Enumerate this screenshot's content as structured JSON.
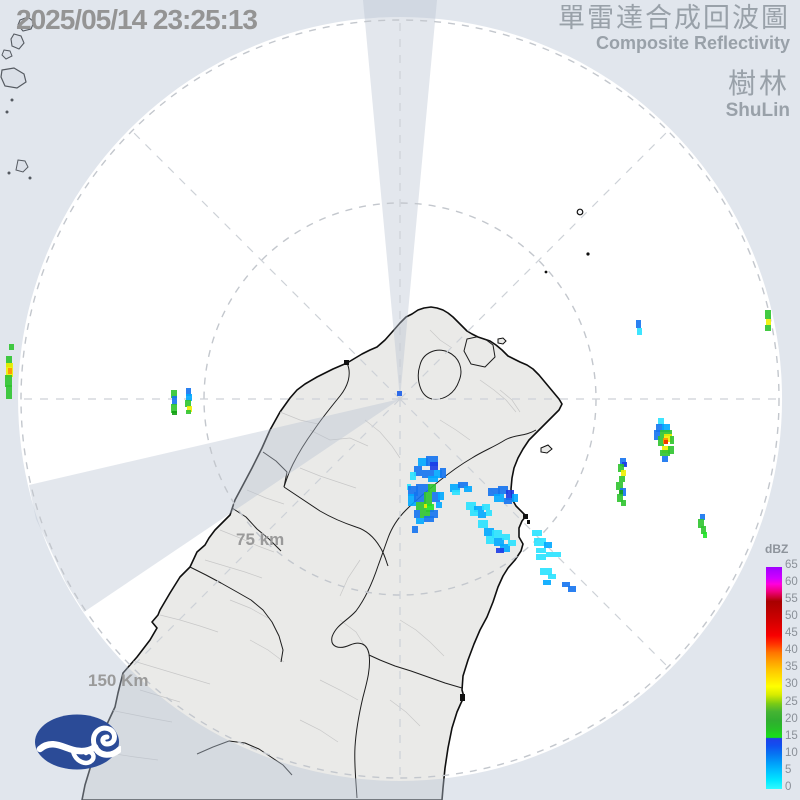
{
  "header": {
    "timestamp": "2025/05/14 23:25:13",
    "title_zh": "單雷達合成回波圖",
    "title_en": "Composite Reflectivity",
    "station_zh": "樹林",
    "station_en": "ShuLin"
  },
  "rings": {
    "inner": "75 km",
    "outer": "150 Km"
  },
  "colorbar": {
    "unit": "dBZ",
    "ticks": [
      "65",
      "60",
      "55",
      "50",
      "45",
      "40",
      "35",
      "30",
      "25",
      "20",
      "15",
      "10",
      "5",
      "0"
    ],
    "gradient": [
      {
        "p": 0,
        "c": "#A000FF"
      },
      {
        "p": 5,
        "c": "#D000FF"
      },
      {
        "p": 7.7,
        "c": "#FF00DC"
      },
      {
        "p": 11,
        "c": "#F00080"
      },
      {
        "p": 14,
        "c": "#C80028"
      },
      {
        "p": 15.4,
        "c": "#A80000"
      },
      {
        "p": 19,
        "c": "#B80000"
      },
      {
        "p": 23.1,
        "c": "#CC0000"
      },
      {
        "p": 27,
        "c": "#E20000"
      },
      {
        "p": 30.8,
        "c": "#F80000"
      },
      {
        "p": 34.5,
        "c": "#FF3000"
      },
      {
        "p": 38.5,
        "c": "#FF7400"
      },
      {
        "p": 42.5,
        "c": "#FFA000"
      },
      {
        "p": 46.2,
        "c": "#FFC400"
      },
      {
        "p": 50,
        "c": "#FFE200"
      },
      {
        "p": 53.8,
        "c": "#FFFF00"
      },
      {
        "p": 57.5,
        "c": "#D8EC00"
      },
      {
        "p": 61.5,
        "c": "#7CCC14"
      },
      {
        "p": 65,
        "c": "#46B432"
      },
      {
        "p": 69.2,
        "c": "#30AE30"
      },
      {
        "p": 73,
        "c": "#26C026"
      },
      {
        "p": 76.8,
        "c": "#16E216"
      },
      {
        "p": 77.2,
        "c": "#2040E8"
      },
      {
        "p": 80.5,
        "c": "#1050F0"
      },
      {
        "p": 84.6,
        "c": "#0678F2"
      },
      {
        "p": 88.5,
        "c": "#00A0FA"
      },
      {
        "p": 92.3,
        "c": "#00C4FF"
      },
      {
        "p": 96,
        "c": "#00E6FF"
      },
      {
        "p": 100,
        "c": "#30FAFF"
      }
    ]
  },
  "echo_palette": {
    "cy": "#29E2FF",
    "lb": "#00A8FF",
    "bl": "#1473F0",
    "db": "#1C3BE6",
    "gr": "#2FC42F",
    "bg": "#1FE426",
    "dg": "#13A013",
    "ye": "#F0F000",
    "or": "#FF9000",
    "rd": "#F03000",
    "yo": "#FFC800"
  },
  "radar_marker_color": "#2E6BE8",
  "echoes": [
    [
      418,
      458,
      10,
      8,
      "lb"
    ],
    [
      426,
      456,
      12,
      10,
      "bl"
    ],
    [
      430,
      462,
      8,
      8,
      "db"
    ],
    [
      414,
      466,
      8,
      10,
      "bl"
    ],
    [
      422,
      470,
      12,
      8,
      "bl"
    ],
    [
      434,
      470,
      8,
      8,
      "lb"
    ],
    [
      440,
      468,
      6,
      10,
      "bl"
    ],
    [
      428,
      476,
      10,
      6,
      "lb"
    ],
    [
      410,
      472,
      6,
      8,
      "cy"
    ],
    [
      407,
      484,
      4,
      6,
      "cy"
    ],
    [
      408,
      486,
      10,
      10,
      "bl"
    ],
    [
      416,
      484,
      14,
      8,
      "bl"
    ],
    [
      428,
      484,
      8,
      8,
      "gr"
    ],
    [
      408,
      494,
      8,
      12,
      "lb"
    ],
    [
      414,
      492,
      12,
      10,
      "bl"
    ],
    [
      424,
      492,
      8,
      14,
      "gr"
    ],
    [
      432,
      492,
      8,
      10,
      "bl"
    ],
    [
      416,
      502,
      10,
      8,
      "gr"
    ],
    [
      426,
      504,
      8,
      8,
      "bg"
    ],
    [
      420,
      510,
      10,
      8,
      "gr"
    ],
    [
      430,
      510,
      8,
      8,
      "bl"
    ],
    [
      414,
      510,
      6,
      8,
      "bl"
    ],
    [
      424,
      516,
      10,
      6,
      "bl"
    ],
    [
      416,
      518,
      8,
      6,
      "lb"
    ],
    [
      424,
      504,
      3,
      4,
      "ye"
    ],
    [
      412,
      526,
      6,
      7,
      "bl"
    ],
    [
      438,
      492,
      6,
      8,
      "lb"
    ],
    [
      436,
      502,
      6,
      6,
      "lb"
    ],
    [
      450,
      484,
      10,
      8,
      "lb"
    ],
    [
      458,
      482,
      10,
      6,
      "bl"
    ],
    [
      464,
      486,
      8,
      6,
      "lb"
    ],
    [
      452,
      490,
      8,
      5,
      "cy"
    ],
    [
      488,
      488,
      12,
      8,
      "bl"
    ],
    [
      498,
      486,
      10,
      8,
      "bl"
    ],
    [
      506,
      490,
      8,
      10,
      "db"
    ],
    [
      494,
      494,
      10,
      8,
      "lb"
    ],
    [
      504,
      498,
      8,
      6,
      "bl"
    ],
    [
      512,
      494,
      6,
      8,
      "lb"
    ],
    [
      466,
      502,
      10,
      8,
      "cy"
    ],
    [
      474,
      506,
      10,
      6,
      "lb"
    ],
    [
      482,
      504,
      8,
      6,
      "cy"
    ],
    [
      470,
      510,
      8,
      6,
      "cy"
    ],
    [
      478,
      512,
      8,
      6,
      "lb"
    ],
    [
      486,
      510,
      6,
      6,
      "cy"
    ],
    [
      478,
      520,
      10,
      8,
      "cy"
    ],
    [
      484,
      528,
      10,
      8,
      "lb"
    ],
    [
      492,
      530,
      10,
      8,
      "cy"
    ],
    [
      486,
      536,
      8,
      8,
      "cy"
    ],
    [
      494,
      538,
      10,
      8,
      "lb"
    ],
    [
      502,
      534,
      8,
      6,
      "cy"
    ],
    [
      500,
      544,
      10,
      8,
      "lb"
    ],
    [
      508,
      540,
      8,
      6,
      "cy"
    ],
    [
      496,
      548,
      8,
      5,
      "db"
    ],
    [
      532,
      530,
      10,
      6,
      "cy"
    ],
    [
      534,
      538,
      12,
      8,
      "cy"
    ],
    [
      544,
      542,
      8,
      6,
      "lb"
    ],
    [
      536,
      548,
      10,
      5,
      "cy"
    ],
    [
      536,
      554,
      10,
      6,
      "cy"
    ],
    [
      546,
      552,
      8,
      5,
      "cy"
    ],
    [
      554,
      552,
      7,
      5,
      "cy"
    ],
    [
      540,
      568,
      12,
      7,
      "cy"
    ],
    [
      548,
      574,
      8,
      5,
      "cy"
    ],
    [
      543,
      580,
      8,
      5,
      "lb"
    ],
    [
      562,
      582,
      8,
      5,
      "bl"
    ],
    [
      568,
      586,
      8,
      6,
      "bl"
    ],
    [
      636,
      320,
      5,
      8,
      "bl"
    ],
    [
      637,
      328,
      5,
      7,
      "cy"
    ],
    [
      765,
      310,
      6,
      9,
      "gr"
    ],
    [
      766,
      319,
      5,
      6,
      "ye"
    ],
    [
      765,
      325,
      6,
      6,
      "gr"
    ],
    [
      658,
      418,
      6,
      7,
      "cy"
    ],
    [
      656,
      424,
      8,
      8,
      "bl"
    ],
    [
      662,
      424,
      8,
      8,
      "lb"
    ],
    [
      654,
      430,
      6,
      10,
      "bl"
    ],
    [
      660,
      430,
      12,
      6,
      "gr"
    ],
    [
      658,
      436,
      6,
      10,
      "gr"
    ],
    [
      664,
      434,
      8,
      8,
      "ye"
    ],
    [
      670,
      436,
      4,
      8,
      "gr"
    ],
    [
      663,
      438,
      5,
      6,
      "or"
    ],
    [
      664,
      440,
      4,
      4,
      "rd"
    ],
    [
      662,
      446,
      8,
      7,
      "ye"
    ],
    [
      660,
      450,
      10,
      6,
      "gr"
    ],
    [
      662,
      456,
      6,
      6,
      "bl"
    ],
    [
      668,
      446,
      6,
      8,
      "gr"
    ],
    [
      620,
      458,
      6,
      8,
      "bl"
    ],
    [
      622,
      462,
      5,
      5,
      "db"
    ],
    [
      618,
      464,
      6,
      8,
      "gr"
    ],
    [
      621,
      470,
      5,
      6,
      "ye"
    ],
    [
      619,
      476,
      6,
      6,
      "gr"
    ],
    [
      616,
      482,
      7,
      8,
      "gr"
    ],
    [
      620,
      488,
      6,
      8,
      "bl"
    ],
    [
      619,
      490,
      4,
      5,
      "dg"
    ],
    [
      617,
      494,
      6,
      8,
      "gr"
    ],
    [
      621,
      500,
      5,
      6,
      "gr"
    ],
    [
      700,
      514,
      5,
      6,
      "bl"
    ],
    [
      698,
      519,
      6,
      9,
      "gr"
    ],
    [
      701,
      526,
      5,
      8,
      "gr"
    ],
    [
      703,
      532,
      4,
      6,
      "bg"
    ],
    [
      9,
      344,
      5,
      6,
      "gr"
    ],
    [
      6,
      356,
      6,
      11,
      "gr"
    ],
    [
      6,
      363,
      7,
      14,
      "ye"
    ],
    [
      8,
      368,
      4,
      6,
      "or"
    ],
    [
      5,
      375,
      7,
      12,
      "gr"
    ],
    [
      6,
      385,
      6,
      14,
      "gr"
    ],
    [
      171,
      390,
      6,
      8,
      "gr"
    ],
    [
      172,
      396,
      5,
      9,
      "bl"
    ],
    [
      171,
      404,
      6,
      9,
      "gr"
    ],
    [
      172,
      411,
      5,
      4,
      "dg"
    ],
    [
      186,
      388,
      5,
      8,
      "bl"
    ],
    [
      186,
      394,
      6,
      7,
      "lb"
    ],
    [
      185,
      400,
      6,
      7,
      "gr"
    ],
    [
      187,
      406,
      5,
      6,
      "ye"
    ],
    [
      186,
      410,
      5,
      4,
      "gr"
    ]
  ]
}
